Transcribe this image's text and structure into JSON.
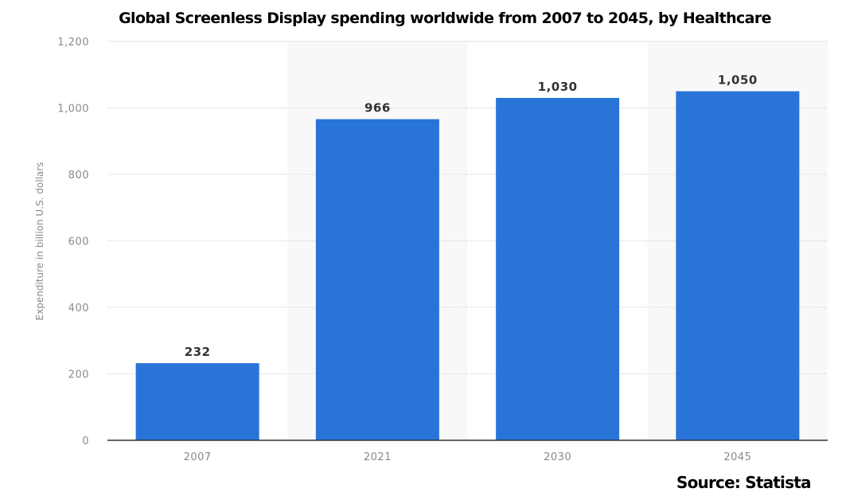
{
  "chart_data": {
    "type": "bar",
    "title": "Global Screenless Display spending worldwide from 2007 to 2045, by Healthcare",
    "xlabel": "",
    "ylabel": "Expenditure in billion U.S. dollars",
    "categories": [
      "2007",
      "2021",
      "2030",
      "2045"
    ],
    "values": [
      232,
      966,
      1030,
      1050
    ],
    "data_labels": [
      "232",
      "966",
      "1,030",
      "1,050"
    ],
    "ylim": [
      0,
      1200
    ],
    "yticks": [
      0,
      200,
      400,
      600,
      800,
      1000,
      1200
    ],
    "ytick_labels": [
      "0",
      "200",
      "400",
      "600",
      "800",
      "1,000",
      "1,200"
    ],
    "grid": true,
    "bar_color": "#2874d9",
    "source": "Source: Statista"
  }
}
